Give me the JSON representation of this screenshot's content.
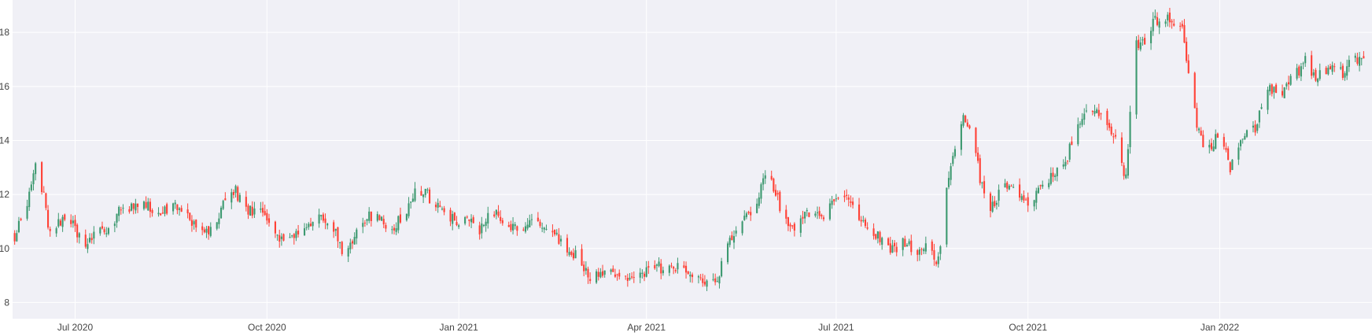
{
  "chart_data": {
    "type": "candlestick",
    "title": "",
    "xlabel": "",
    "ylabel": "",
    "xlim": [
      "2020-06-01",
      "2022-03-15"
    ],
    "ylim": [
      7.4,
      19.2
    ],
    "y_ticks": [
      8,
      10,
      12,
      14,
      16,
      18
    ],
    "x_ticks": [
      {
        "date": "2020-07-01",
        "label": "Jul 2020"
      },
      {
        "date": "2020-10-01",
        "label": "Oct 2020"
      },
      {
        "date": "2021-01-01",
        "label": "Jan 2021"
      },
      {
        "date": "2021-04-01",
        "label": "Apr 2021"
      },
      {
        "date": "2021-07-01",
        "label": "Jul 2021"
      },
      {
        "date": "2021-10-01",
        "label": "Oct 2021"
      },
      {
        "date": "2022-01-01",
        "label": "Jan 2022"
      }
    ],
    "grid": true,
    "colors": {
      "background": "#f0f0f6",
      "increasing": "#3d9970",
      "decreasing": "#ff4136",
      "grid": "#ffffff",
      "tick_text": "#444444"
    },
    "close_path": [
      [
        "2020-06-02",
        10.5
      ],
      [
        "2020-06-08",
        11.4
      ],
      [
        "2020-06-12",
        13.3
      ],
      [
        "2020-06-16",
        12.0
      ],
      [
        "2020-06-19",
        10.5
      ],
      [
        "2020-06-24",
        11.0
      ],
      [
        "2020-06-30",
        10.9
      ],
      [
        "2020-07-06",
        10.1
      ],
      [
        "2020-07-10",
        10.5
      ],
      [
        "2020-07-16",
        10.6
      ],
      [
        "2020-07-22",
        11.4
      ],
      [
        "2020-07-28",
        11.5
      ],
      [
        "2020-08-03",
        11.6
      ],
      [
        "2020-08-10",
        11.3
      ],
      [
        "2020-08-16",
        11.6
      ],
      [
        "2020-08-22",
        11.2
      ],
      [
        "2020-08-28",
        10.8
      ],
      [
        "2020-09-03",
        10.6
      ],
      [
        "2020-09-09",
        11.4
      ],
      [
        "2020-09-15",
        12.2
      ],
      [
        "2020-09-21",
        11.5
      ],
      [
        "2020-09-27",
        11.4
      ],
      [
        "2020-10-03",
        10.7
      ],
      [
        "2020-10-08",
        10.3
      ],
      [
        "2020-10-14",
        10.5
      ],
      [
        "2020-10-20",
        11.0
      ],
      [
        "2020-10-26",
        11.1
      ],
      [
        "2020-11-01",
        11.0
      ],
      [
        "2020-11-07",
        9.7
      ],
      [
        "2020-11-13",
        10.8
      ],
      [
        "2020-11-19",
        11.2
      ],
      [
        "2020-11-25",
        11.0
      ],
      [
        "2020-12-01",
        10.9
      ],
      [
        "2020-12-07",
        11.4
      ],
      [
        "2020-12-12",
        12.2
      ],
      [
        "2020-12-18",
        11.9
      ],
      [
        "2020-12-24",
        11.3
      ],
      [
        "2020-12-30",
        11.0
      ],
      [
        "2021-01-05",
        11.0
      ],
      [
        "2021-01-11",
        10.6
      ],
      [
        "2021-01-17",
        11.3
      ],
      [
        "2021-01-23",
        11.0
      ],
      [
        "2021-01-29",
        10.6
      ],
      [
        "2021-02-04",
        11.1
      ],
      [
        "2021-02-10",
        10.7
      ],
      [
        "2021-02-16",
        10.4
      ],
      [
        "2021-02-22",
        10.1
      ],
      [
        "2021-02-28",
        9.6
      ],
      [
        "2021-03-06",
        8.9
      ],
      [
        "2021-03-12",
        9.3
      ],
      [
        "2021-03-18",
        9.0
      ],
      [
        "2021-03-24",
        8.9
      ],
      [
        "2021-03-30",
        9.1
      ],
      [
        "2021-04-05",
        9.3
      ],
      [
        "2021-04-11",
        9.3
      ],
      [
        "2021-04-17",
        9.2
      ],
      [
        "2021-04-23",
        9.0
      ],
      [
        "2021-04-29",
        8.9
      ],
      [
        "2021-05-05",
        8.9
      ],
      [
        "2021-05-11",
        10.2
      ],
      [
        "2021-05-17",
        11.2
      ],
      [
        "2021-05-23",
        11.6
      ],
      [
        "2021-05-29",
        12.8
      ],
      [
        "2021-06-04",
        11.6
      ],
      [
        "2021-06-10",
        10.8
      ],
      [
        "2021-06-16",
        11.4
      ],
      [
        "2021-06-22",
        11.1
      ],
      [
        "2021-06-28",
        11.5
      ],
      [
        "2021-07-04",
        12.2
      ],
      [
        "2021-07-10",
        11.3
      ],
      [
        "2021-07-16",
        10.9
      ],
      [
        "2021-07-22",
        10.4
      ],
      [
        "2021-07-28",
        10.0
      ],
      [
        "2021-08-03",
        10.2
      ],
      [
        "2021-08-09",
        9.9
      ],
      [
        "2021-08-15",
        10.1
      ],
      [
        "2021-08-19",
        9.5
      ],
      [
        "2021-08-21",
        11.0
      ],
      [
        "2021-08-25",
        13.0
      ],
      [
        "2021-08-31",
        15.0
      ],
      [
        "2021-09-04",
        14.5
      ],
      [
        "2021-09-08",
        12.5
      ],
      [
        "2021-09-13",
        11.3
      ],
      [
        "2021-09-19",
        12.5
      ],
      [
        "2021-09-25",
        12.0
      ],
      [
        "2021-10-01",
        11.6
      ],
      [
        "2021-10-07",
        12.2
      ],
      [
        "2021-10-13",
        12.7
      ],
      [
        "2021-10-19",
        13.2
      ],
      [
        "2021-10-25",
        14.8
      ],
      [
        "2021-10-31",
        15.1
      ],
      [
        "2021-11-06",
        14.7
      ],
      [
        "2021-11-12",
        14.2
      ],
      [
        "2021-11-17",
        12.5
      ],
      [
        "2021-11-19",
        15.0
      ],
      [
        "2021-11-20",
        17.3
      ],
      [
        "2021-11-26",
        17.8
      ],
      [
        "2021-12-02",
        18.5
      ],
      [
        "2021-12-08",
        18.4
      ],
      [
        "2021-12-14",
        18.2
      ],
      [
        "2021-12-18",
        16.0
      ],
      [
        "2021-12-21",
        14.5
      ],
      [
        "2021-12-25",
        13.4
      ],
      [
        "2021-12-31",
        14.2
      ],
      [
        "2022-01-06",
        13.0
      ],
      [
        "2022-01-12",
        14.0
      ],
      [
        "2022-01-18",
        14.4
      ],
      [
        "2022-01-24",
        16.0
      ],
      [
        "2022-01-30",
        15.6
      ],
      [
        "2022-02-05",
        16.4
      ],
      [
        "2022-02-11",
        16.9
      ],
      [
        "2022-02-17",
        16.3
      ],
      [
        "2022-02-23",
        16.8
      ],
      [
        "2022-03-01",
        16.5
      ],
      [
        "2022-03-07",
        17.0
      ],
      [
        "2022-03-13",
        17.2
      ]
    ]
  }
}
